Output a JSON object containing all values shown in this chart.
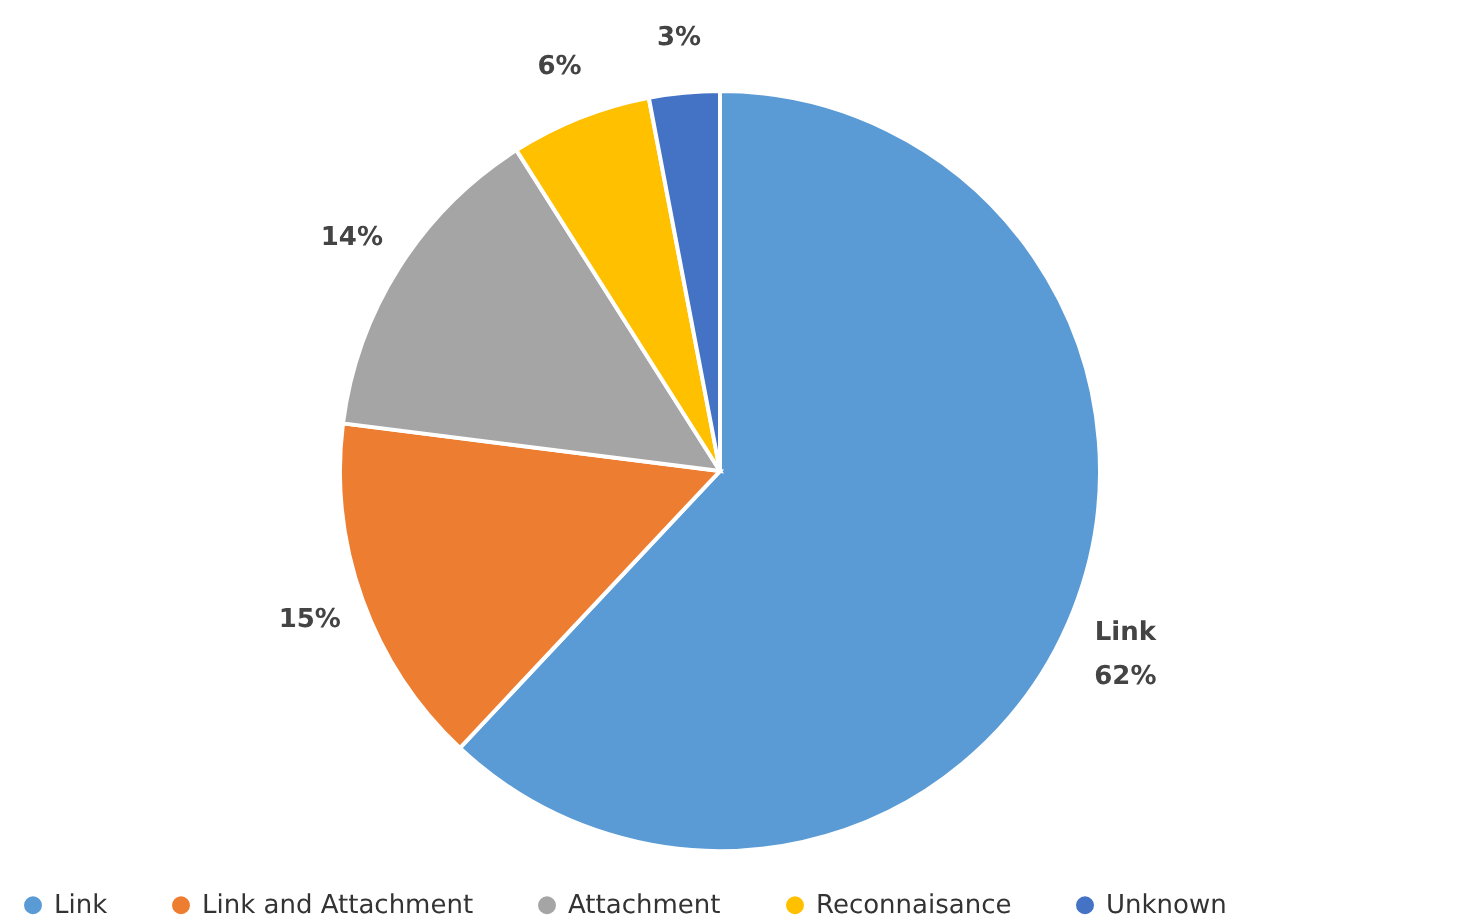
{
  "chart_data": {
    "type": "pie",
    "categories": [
      "Link",
      "Link and Attachment",
      "Attachment",
      "Reconnaisance",
      "Unknown"
    ],
    "values": [
      62,
      15,
      14,
      6,
      3
    ],
    "colors": [
      "#5b9bd5",
      "#ed7d31",
      "#a5a5a5",
      "#ffc000",
      "#4472c4"
    ],
    "value_labels": [
      "Link 62%",
      "15%",
      "14%",
      "6%",
      "3%"
    ],
    "legend": "bottom"
  }
}
